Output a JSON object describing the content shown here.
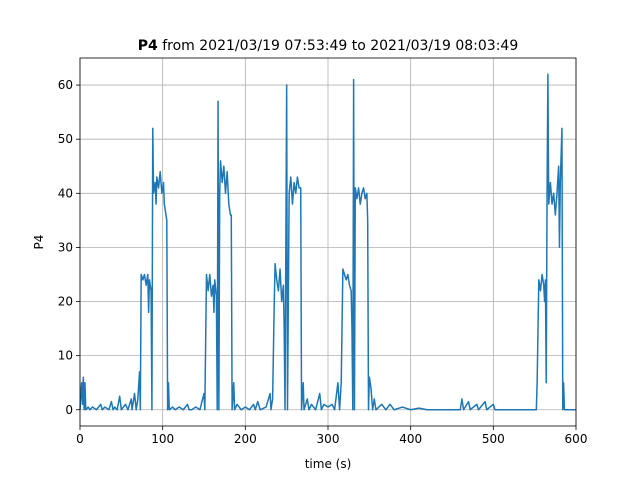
{
  "chart_data": {
    "type": "line",
    "title": {
      "bold": "P4",
      "text": "from 2021/03/19 07:53:49 to 2021/03/19 08:03:49"
    },
    "x_label": "time (s)",
    "y_label": "P4",
    "xlim": [
      0,
      600
    ],
    "ylim": [
      -3,
      65
    ],
    "xticks": [
      0,
      100,
      200,
      300,
      400,
      500,
      600
    ],
    "yticks": [
      0,
      10,
      20,
      30,
      40,
      50,
      60
    ],
    "grid": true,
    "series": [
      {
        "name": "P4",
        "color": "#1f77b4",
        "x": [
          0,
          2,
          3,
          4,
          5,
          6,
          7,
          10,
          12,
          15,
          20,
          25,
          27,
          30,
          35,
          38,
          40,
          42,
          45,
          48,
          50,
          55,
          58,
          62,
          63,
          66,
          68,
          70,
          72,
          73,
          74,
          76,
          78,
          80,
          82,
          83,
          84,
          86,
          87,
          88,
          89,
          91,
          92,
          93,
          95,
          97,
          99,
          101,
          102,
          104,
          105,
          106,
          107,
          108,
          112,
          115,
          120,
          125,
          130,
          132,
          135,
          140,
          145,
          150,
          151,
          153,
          155,
          157,
          159,
          161,
          162,
          163,
          165,
          166,
          167,
          168,
          169,
          170,
          172,
          174,
          176,
          178,
          180,
          182,
          183,
          184,
          186,
          187,
          190,
          195,
          200,
          205,
          210,
          212,
          215,
          218,
          225,
          230,
          231,
          233,
          235,
          236,
          238,
          240,
          242,
          244,
          246,
          247,
          248,
          250,
          251,
          253,
          255,
          257,
          259,
          261,
          263,
          265,
          267,
          268,
          270,
          271,
          275,
          277,
          280,
          285,
          290,
          292,
          295,
          300,
          305,
          308,
          312,
          314,
          316,
          318,
          320,
          322,
          324,
          326,
          328,
          329,
          330,
          331,
          332,
          333,
          335,
          337,
          339,
          341,
          343,
          345,
          347,
          348,
          349,
          350,
          352,
          354,
          356,
          358,
          365,
          370,
          375,
          380,
          390,
          400,
          410,
          420,
          460,
          462,
          464,
          470,
          472,
          480,
          482,
          490,
          492,
          500,
          502,
          530,
          552,
          553,
          555,
          557,
          559,
          561,
          562,
          563,
          564,
          565,
          566,
          567,
          569,
          571,
          573,
          575,
          577,
          579,
          580,
          581,
          583,
          584,
          585,
          586,
          600
        ],
        "values": [
          0,
          5,
          1,
          6,
          0,
          5,
          0,
          0.5,
          0,
          0.5,
          0,
          1,
          0,
          0.5,
          0,
          1.5,
          0,
          0.5,
          0,
          2.5,
          0,
          1,
          0,
          2,
          0,
          3,
          0,
          2,
          7,
          0,
          25,
          24,
          25,
          23,
          25,
          18,
          24,
          22,
          0,
          52,
          40,
          42,
          38,
          43,
          41,
          44,
          40,
          42,
          38,
          36,
          35,
          0,
          5,
          0,
          0.5,
          0,
          0.5,
          0,
          1,
          0,
          0,
          0.5,
          0,
          3,
          0,
          25,
          22,
          25,
          21,
          23,
          18,
          24,
          21,
          0,
          57,
          0,
          40,
          46,
          42,
          45,
          40,
          44,
          38,
          36,
          36,
          0,
          5,
          0,
          1,
          0,
          0.5,
          0,
          1,
          0,
          1.5,
          0,
          0.5,
          3,
          0,
          2,
          20,
          27,
          24,
          22,
          26,
          20,
          23,
          15,
          0,
          60,
          0,
          40,
          43,
          38,
          42,
          40,
          43,
          41,
          41,
          0,
          5,
          0,
          2,
          0,
          1,
          0,
          3,
          0,
          1,
          0.5,
          1,
          0,
          5,
          0,
          5,
          26,
          25,
          24,
          25,
          23,
          22,
          15,
          0,
          61,
          0,
          41,
          39,
          41,
          38,
          40,
          41,
          39,
          40,
          35,
          0,
          6,
          4,
          0,
          2,
          0,
          1,
          0,
          1,
          0,
          0.5,
          0,
          0.3,
          0,
          0,
          2,
          0,
          1.5,
          0,
          1,
          0,
          1.5,
          0,
          1,
          0,
          0,
          0,
          5,
          24,
          22,
          25,
          23,
          20,
          24,
          5,
          40,
          62,
          38,
          42,
          38,
          40,
          36,
          40,
          45,
          30,
          42,
          52,
          0,
          5,
          0,
          0
        ]
      }
    ]
  }
}
